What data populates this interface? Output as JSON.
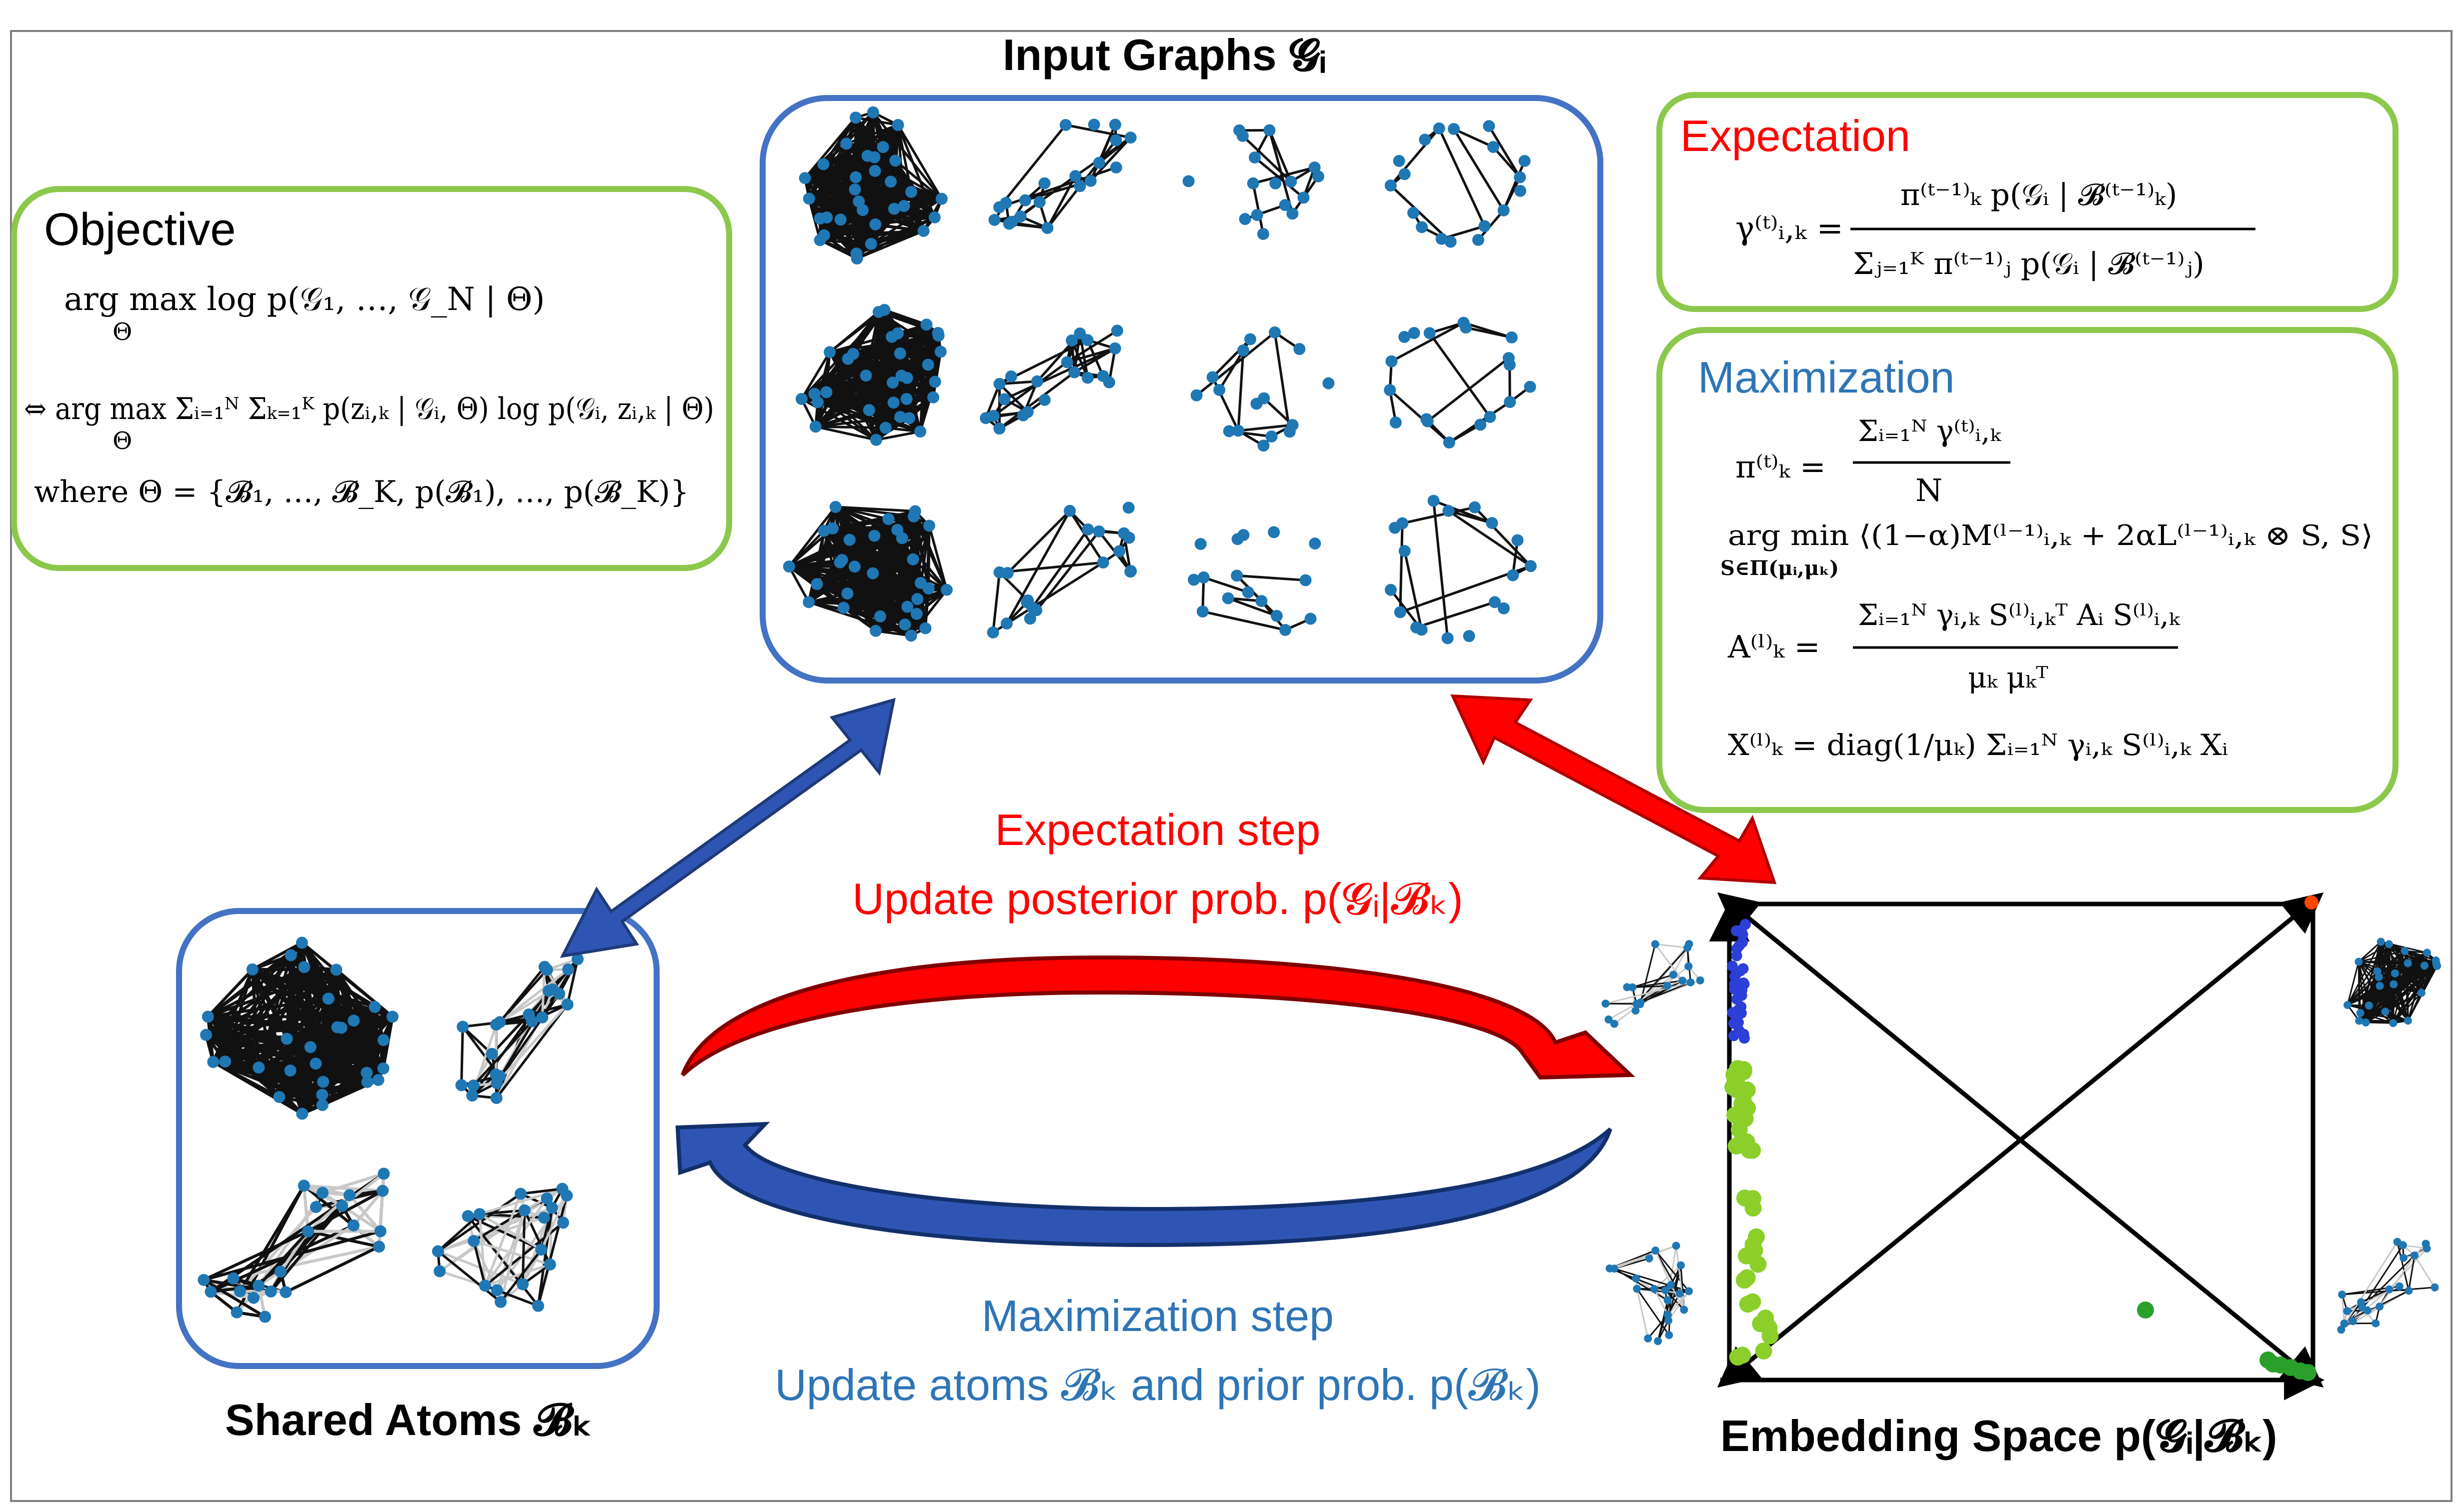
{
  "title_input_graphs": "Input Graphs 𝓖ᵢ",
  "title_shared_atoms": "Shared Atoms 𝓑ₖ",
  "title_embedding_space": "Embedding Space p(𝓖ᵢ|𝓑ₖ)",
  "objective": {
    "heading": "Objective",
    "line1": "arg max log p(𝒢₁, …, 𝒢_N | Θ)",
    "line1_sub": "Θ",
    "line2": "⇔ arg max Σᵢ₌₁ᴺ Σₖ₌₁ᴷ p(zᵢ,ₖ | 𝒢ᵢ, Θ) log p(𝒢ᵢ, zᵢ,ₖ | Θ)",
    "line2_sub": "Θ",
    "line3": "where Θ = {𝓑₁, …, 𝓑_K, p(𝓑₁), …, p(𝓑_K)}"
  },
  "expectation_box": {
    "heading": "Expectation",
    "lhs": "γ⁽ᵗ⁾ᵢ,ₖ =",
    "numerator": "π⁽ᵗ⁻¹⁾ₖ p(𝒢ᵢ | 𝓑⁽ᵗ⁻¹⁾ₖ)",
    "denominator": "Σⱼ₌₁ᴷ π⁽ᵗ⁻¹⁾ⱼ p(𝒢ᵢ | 𝓑⁽ᵗ⁻¹⁾ⱼ)"
  },
  "maximization_box": {
    "heading": "Maximization",
    "eq1_lhs": "π⁽ᵗ⁾ₖ =",
    "eq1_num": "Σᵢ₌₁ᴺ γ⁽ᵗ⁾ᵢ,ₖ",
    "eq1_den": "N",
    "eq2": "arg min ⟨(1−α)M⁽ˡ⁻¹⁾ᵢ,ₖ + 2αL⁽ˡ⁻¹⁾ᵢ,ₖ ⊗ S, S⟩",
    "eq2_sub": "S∈Π(μᵢ,μₖ)",
    "eq3_lhs": "A⁽ˡ⁾ₖ =",
    "eq3_num": "Σᵢ₌₁ᴺ γᵢ,ₖ S⁽ˡ⁾ᵢ,ₖᵀ Aᵢ S⁽ˡ⁾ᵢ,ₖ",
    "eq3_den": "μₖ μₖᵀ",
    "eq4": "X⁽ˡ⁾ₖ = diag(1/μₖ) Σᵢ₌₁ᴺ γᵢ,ₖ S⁽ˡ⁾ᵢ,ₖ Xᵢ"
  },
  "expectation_step": {
    "line1": "Expectation step",
    "line2": "Update posterior prob. p(𝓖ᵢ|𝓑ₖ)"
  },
  "maximization_step": {
    "line1": "Maximization step",
    "line2": "Update atoms 𝓑ₖ and prior prob. p(𝓑ₖ)"
  },
  "colors": {
    "green_border": "#8cc84b",
    "blue_border": "#4472c4",
    "red": "#ff0000",
    "blue_arrow": "#2f55b4",
    "blue_text": "#2e75b6",
    "node_blue": "#1f77b4",
    "point_blue": "#2c3fd6",
    "point_green": "#8ccf2a",
    "point_darkgreen": "#2aa02a",
    "point_orange": "#ff4500"
  }
}
